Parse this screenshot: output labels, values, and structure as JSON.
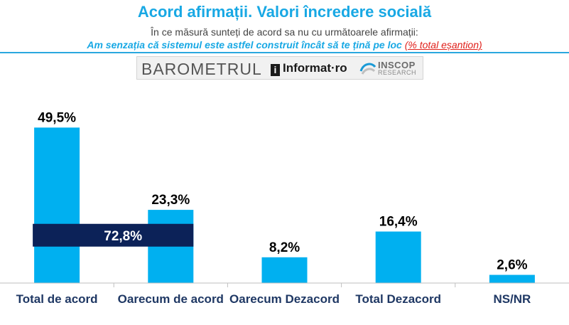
{
  "header": {
    "title": "Acord afirmații. Valori încredere socială",
    "question": "În ce măsură sunteți de acord sa nu cu următoarele afirmații:",
    "statement": "Am senzația că sistemul este astfel construit încât să te țină pe loc",
    "sample_note": "(% total eșantion)"
  },
  "logos": {
    "barometrul": "BAROMETRUL",
    "informat": "Informat",
    "informat_mark": "i",
    "informat_suffix": "ro",
    "inscop": "INSCOP",
    "inscop_sub": "RESEARCH"
  },
  "colors": {
    "title": "#18a8e4",
    "bar": "#00b0f0",
    "highlight": "#0c2258",
    "note": "#e0201b"
  },
  "chart_data": {
    "type": "bar",
    "categories": [
      "Total de acord",
      "Oarecum de acord",
      "Oarecum Dezacord",
      "Total Dezacord",
      "NS/NR"
    ],
    "values": [
      49.5,
      23.3,
      8.2,
      16.4,
      2.6
    ],
    "value_labels": [
      "49,5%",
      "23,3%",
      "8,2%",
      "16,4%",
      "2,6%"
    ],
    "ylim": [
      0,
      60
    ],
    "grid": false,
    "annotation": {
      "label": "72,8%",
      "value": 72.8,
      "spans": [
        "Total de acord",
        "Oarecum de acord"
      ]
    }
  }
}
